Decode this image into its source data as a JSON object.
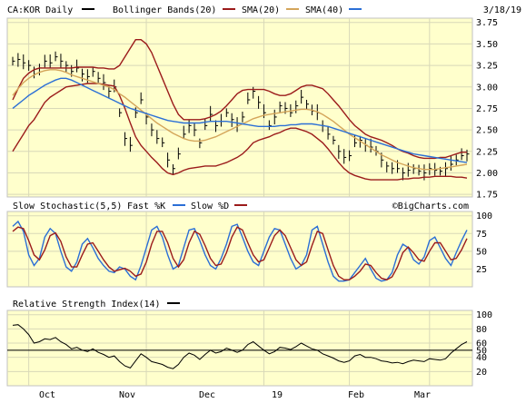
{
  "header": {
    "symbol": "CA:KOR Daily",
    "indicator_bb": "Bollinger Bands(20)",
    "indicator_sma20": "SMA(20)",
    "indicator_sma40": "SMA(40)",
    "date": "3/18/19"
  },
  "watermark": "©BigCharts.com",
  "colors": {
    "background": "#ffffcc",
    "frame": "#c0c0c0",
    "price": "#000000",
    "bollinger": "#9b1b1b",
    "sma20": "#d4a55a",
    "sma40": "#2b6fd6",
    "fast_k": "#2b6fd6",
    "slow_d": "#9b1b1b"
  },
  "chart_data": [
    {
      "type": "line",
      "panel": "price",
      "title": "CA:KOR Daily",
      "y_ticks": [
        1.75,
        2.0,
        2.25,
        2.5,
        2.75,
        3.0,
        3.25,
        3.5,
        3.75
      ],
      "y_tick_labels": [
        "1.75",
        "2.00",
        "2.25",
        "2.50",
        "2.75",
        "3.00",
        "3.25",
        "3.50",
        "3.75"
      ],
      "ylim": [
        1.72,
        3.8
      ],
      "x_labels": [
        "Oct",
        "Nov",
        "Dec",
        "19",
        "Feb",
        "Mar"
      ],
      "series": [
        {
          "name": "CA:KOR Daily",
          "kind": "hlc-bars",
          "values": [
            3.3,
            3.32,
            3.28,
            3.25,
            3.15,
            3.22,
            3.3,
            3.28,
            3.35,
            3.3,
            3.25,
            3.18,
            3.22,
            3.15,
            3.12,
            3.18,
            3.1,
            3.05,
            2.95,
            3.0,
            2.7,
            2.4,
            2.32,
            2.7,
            2.85,
            2.65,
            2.5,
            2.4,
            2.35,
            2.15,
            2.05,
            2.22,
            2.45,
            2.55,
            2.5,
            2.35,
            2.55,
            2.68,
            2.55,
            2.6,
            2.7,
            2.62,
            2.55,
            2.65,
            2.85,
            2.95,
            2.82,
            2.7,
            2.55,
            2.65,
            2.78,
            2.75,
            2.7,
            2.78,
            2.88,
            2.8,
            2.72,
            2.7,
            2.55,
            2.45,
            2.38,
            2.25,
            2.18,
            2.2,
            2.35,
            2.38,
            2.32,
            2.3,
            2.25,
            2.15,
            2.08,
            2.05,
            2.05,
            2.0,
            2.03,
            2.05,
            2.02,
            2.0,
            2.05,
            2.03,
            2.02,
            2.05,
            2.1,
            2.15,
            2.2,
            2.22
          ]
        },
        {
          "name": "Bollinger Bands(20) upper",
          "values": [
            2.85,
            2.98,
            3.1,
            3.16,
            3.2,
            3.22,
            3.22,
            3.22,
            3.22,
            3.22,
            3.22,
            3.22,
            3.23,
            3.23,
            3.23,
            3.23,
            3.22,
            3.22,
            3.21,
            3.21,
            3.25,
            3.35,
            3.45,
            3.55,
            3.55,
            3.5,
            3.4,
            3.25,
            3.1,
            2.95,
            2.8,
            2.68,
            2.62,
            2.62,
            2.62,
            2.62,
            2.63,
            2.65,
            2.68,
            2.72,
            2.78,
            2.85,
            2.92,
            2.96,
            2.97,
            2.97,
            2.97,
            2.97,
            2.95,
            2.92,
            2.9,
            2.9,
            2.92,
            2.96,
            3.0,
            3.02,
            3.02,
            3.0,
            2.98,
            2.92,
            2.85,
            2.78,
            2.7,
            2.62,
            2.55,
            2.5,
            2.45,
            2.42,
            2.4,
            2.38,
            2.35,
            2.32,
            2.28,
            2.25,
            2.23,
            2.2,
            2.18,
            2.17,
            2.17,
            2.17,
            2.18,
            2.18,
            2.2,
            2.22,
            2.24,
            2.24
          ]
        },
        {
          "name": "Bollinger Bands(20) lower",
          "values": [
            2.25,
            2.35,
            2.45,
            2.55,
            2.62,
            2.72,
            2.82,
            2.88,
            2.92,
            2.96,
            3.0,
            3.01,
            3.02,
            3.03,
            3.04,
            3.04,
            3.04,
            3.03,
            3.02,
            3.01,
            2.9,
            2.75,
            2.58,
            2.42,
            2.32,
            2.25,
            2.18,
            2.12,
            2.05,
            2.0,
            1.98,
            2.0,
            2.03,
            2.05,
            2.06,
            2.07,
            2.08,
            2.08,
            2.08,
            2.1,
            2.12,
            2.15,
            2.18,
            2.22,
            2.28,
            2.35,
            2.38,
            2.4,
            2.42,
            2.45,
            2.47,
            2.5,
            2.52,
            2.52,
            2.5,
            2.48,
            2.45,
            2.4,
            2.35,
            2.28,
            2.2,
            2.12,
            2.05,
            2.0,
            1.97,
            1.95,
            1.93,
            1.92,
            1.92,
            1.92,
            1.92,
            1.92,
            1.92,
            1.93,
            1.93,
            1.94,
            1.94,
            1.95,
            1.95,
            1.96,
            1.96,
            1.96,
            1.96,
            1.95,
            1.95,
            1.94
          ]
        },
        {
          "name": "SMA(20)",
          "values": [
            2.9,
            2.98,
            3.05,
            3.1,
            3.14,
            3.17,
            3.19,
            3.2,
            3.2,
            3.19,
            3.17,
            3.14,
            3.12,
            3.1,
            3.08,
            3.06,
            3.04,
            3.02,
            3.0,
            2.97,
            2.92,
            2.88,
            2.83,
            2.78,
            2.73,
            2.68,
            2.63,
            2.58,
            2.54,
            2.5,
            2.46,
            2.43,
            2.4,
            2.38,
            2.37,
            2.37,
            2.38,
            2.4,
            2.42,
            2.45,
            2.48,
            2.51,
            2.54,
            2.57,
            2.6,
            2.63,
            2.65,
            2.67,
            2.68,
            2.69,
            2.7,
            2.71,
            2.72,
            2.73,
            2.74,
            2.74,
            2.73,
            2.71,
            2.68,
            2.64,
            2.6,
            2.55,
            2.5,
            2.45,
            2.41,
            2.37,
            2.33,
            2.29,
            2.25,
            2.21,
            2.18,
            2.15,
            2.12,
            2.1,
            2.08,
            2.06,
            2.05,
            2.04,
            2.04,
            2.04,
            2.05,
            2.06,
            2.07,
            2.08,
            2.09,
            2.1
          ]
        },
        {
          "name": "SMA(40)",
          "values": [
            2.75,
            2.8,
            2.85,
            2.9,
            2.94,
            2.98,
            3.02,
            3.05,
            3.08,
            3.1,
            3.1,
            3.08,
            3.05,
            3.02,
            2.99,
            2.96,
            2.93,
            2.9,
            2.87,
            2.84,
            2.81,
            2.78,
            2.75,
            2.73,
            2.71,
            2.69,
            2.67,
            2.65,
            2.63,
            2.61,
            2.6,
            2.59,
            2.58,
            2.58,
            2.58,
            2.58,
            2.59,
            2.6,
            2.6,
            2.6,
            2.6,
            2.59,
            2.58,
            2.57,
            2.56,
            2.55,
            2.54,
            2.54,
            2.54,
            2.54,
            2.55,
            2.55,
            2.56,
            2.56,
            2.57,
            2.57,
            2.57,
            2.56,
            2.55,
            2.54,
            2.52,
            2.5,
            2.48,
            2.46,
            2.44,
            2.42,
            2.4,
            2.38,
            2.36,
            2.34,
            2.32,
            2.3,
            2.28,
            2.26,
            2.24,
            2.22,
            2.21,
            2.2,
            2.19,
            2.18,
            2.17,
            2.16,
            2.15,
            2.14,
            2.13,
            2.12
          ]
        }
      ]
    },
    {
      "type": "line",
      "panel": "stochastic",
      "title": "Slow Stochastic(5,5)",
      "y_ticks": [
        25,
        50,
        75,
        100
      ],
      "y_tick_labels": [
        "25",
        "50",
        "75",
        "100"
      ],
      "ylim": [
        0,
        106
      ],
      "series": [
        {
          "name": "Fast %K",
          "values": [
            85,
            92,
            78,
            45,
            30,
            40,
            70,
            82,
            75,
            50,
            28,
            22,
            35,
            60,
            68,
            55,
            40,
            30,
            22,
            20,
            28,
            25,
            15,
            10,
            30,
            55,
            80,
            85,
            70,
            45,
            25,
            30,
            55,
            80,
            82,
            65,
            45,
            30,
            25,
            40,
            60,
            85,
            88,
            70,
            50,
            35,
            30,
            50,
            70,
            82,
            80,
            60,
            40,
            25,
            30,
            45,
            80,
            85,
            60,
            35,
            15,
            8,
            8,
            10,
            20,
            30,
            40,
            25,
            12,
            8,
            10,
            20,
            45,
            60,
            55,
            38,
            32,
            42,
            65,
            70,
            55,
            40,
            30,
            48,
            65,
            80
          ]
        },
        {
          "name": "Slow %D",
          "values": [
            78,
            84,
            82,
            65,
            45,
            38,
            52,
            72,
            76,
            64,
            42,
            28,
            28,
            45,
            60,
            62,
            50,
            38,
            28,
            22,
            24,
            26,
            22,
            15,
            18,
            35,
            60,
            78,
            78,
            62,
            40,
            28,
            38,
            62,
            78,
            74,
            58,
            40,
            30,
            32,
            48,
            70,
            84,
            80,
            62,
            45,
            35,
            38,
            55,
            72,
            80,
            72,
            55,
            38,
            30,
            35,
            58,
            78,
            75,
            52,
            30,
            15,
            10,
            10,
            15,
            22,
            32,
            30,
            20,
            12,
            10,
            14,
            28,
            48,
            56,
            48,
            38,
            36,
            50,
            62,
            62,
            50,
            38,
            40,
            52,
            68
          ]
        }
      ]
    },
    {
      "type": "line",
      "panel": "rsi",
      "title": "Relative Strength Index(14)",
      "y_ticks": [
        20,
        40,
        50,
        60,
        80,
        100
      ],
      "y_tick_labels": [
        "20",
        "40",
        "50",
        "60",
        "80",
        "100"
      ],
      "ylim": [
        0,
        106
      ],
      "reference_line": 50,
      "series": [
        {
          "name": "Relative Strength Index(14)",
          "values": [
            85,
            86,
            80,
            72,
            60,
            62,
            66,
            65,
            68,
            62,
            58,
            52,
            54,
            50,
            48,
            52,
            47,
            44,
            40,
            42,
            34,
            28,
            25,
            35,
            45,
            40,
            34,
            32,
            30,
            26,
            24,
            30,
            40,
            46,
            43,
            37,
            44,
            50,
            46,
            48,
            53,
            50,
            47,
            50,
            58,
            62,
            56,
            50,
            45,
            48,
            54,
            53,
            51,
            55,
            60,
            56,
            52,
            50,
            45,
            42,
            39,
            35,
            33,
            35,
            42,
            44,
            40,
            40,
            38,
            35,
            34,
            32,
            33,
            31,
            34,
            36,
            35,
            34,
            38,
            37,
            36,
            38,
            46,
            52,
            58,
            62
          ]
        }
      ]
    }
  ],
  "panels": {
    "stochastic": {
      "title": "Slow Stochastic(5,5)",
      "k_label": "Fast %K",
      "d_label": "Slow %D"
    },
    "rsi": {
      "title": "Relative Strength Index(14)"
    }
  }
}
